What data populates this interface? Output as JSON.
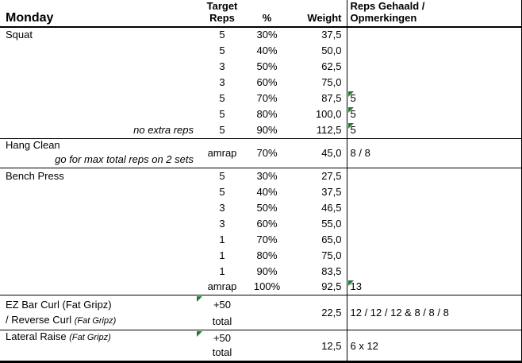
{
  "header": {
    "day": "Monday",
    "col_target_line1": "Target",
    "col_target_line2": "Reps",
    "col_pct": "%",
    "col_weight": "Weight",
    "col_result_line1": "Reps Gehaald /",
    "col_result_line2": "Opmerkingen"
  },
  "colors": {
    "flag_green": "#1e7b34",
    "border": "#000000",
    "background": "#ffffff"
  },
  "sections": [
    {
      "name": "Squat",
      "rows": [
        {
          "target": "5",
          "pct": "30%",
          "weight": "37,5",
          "result": ""
        },
        {
          "target": "5",
          "pct": "40%",
          "weight": "50,0",
          "result": ""
        },
        {
          "target": "3",
          "pct": "50%",
          "weight": "62,5",
          "result": ""
        },
        {
          "target": "3",
          "pct": "60%",
          "weight": "75,0",
          "result": ""
        },
        {
          "target": "5",
          "pct": "70%",
          "weight": "87,5",
          "result": "5"
        },
        {
          "target": "5",
          "pct": "80%",
          "weight": "100,0",
          "result": "5"
        },
        {
          "note": "no extra reps",
          "target": "5",
          "pct": "90%",
          "weight": "112,5",
          "result": "5"
        }
      ]
    },
    {
      "name": "Hang Clean",
      "note": "go for max total reps on 2 sets",
      "target": "amrap",
      "pct": "70%",
      "weight": "45,0",
      "result": "8 / 8"
    },
    {
      "name": "Bench Press",
      "rows": [
        {
          "target": "5",
          "pct": "30%",
          "weight": "27,5",
          "result": ""
        },
        {
          "target": "5",
          "pct": "40%",
          "weight": "37,5",
          "result": ""
        },
        {
          "target": "3",
          "pct": "50%",
          "weight": "46,5",
          "result": ""
        },
        {
          "target": "3",
          "pct": "60%",
          "weight": "55,0",
          "result": ""
        },
        {
          "target": "1",
          "pct": "70%",
          "weight": "65,0",
          "result": ""
        },
        {
          "target": "1",
          "pct": "80%",
          "weight": "75,0",
          "result": ""
        },
        {
          "target": "1",
          "pct": "90%",
          "weight": "83,5",
          "result": ""
        },
        {
          "target": "amrap",
          "pct": "100%",
          "weight": "92,5",
          "result": "13"
        }
      ]
    },
    {
      "name_line1": "EZ Bar Curl (Fat Gripz)",
      "name_line2": "/ Reverse Curl",
      "name_line2_note": "(Fat Gripz)",
      "target_line1": "+50",
      "target_line2": "total",
      "weight": "22,5",
      "result": "12 / 12 / 12 & 8 / 8 / 8"
    },
    {
      "name": "Lateral Raise",
      "name_note": "(Fat Gripz)",
      "target_line1": "+50",
      "target_line2": "total",
      "weight": "12,5",
      "result": "6 x 12"
    }
  ]
}
